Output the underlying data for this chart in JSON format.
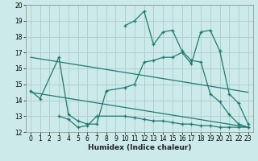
{
  "xlabel": "Humidex (Indice chaleur)",
  "bg_color": "#cdeaea",
  "line_color": "#1e7a6e",
  "grid_color": "#b0d0d0",
  "xlim": [
    -0.5,
    23.5
  ],
  "ylim": [
    12,
    20
  ],
  "xticks": [
    0,
    1,
    2,
    3,
    4,
    5,
    6,
    7,
    8,
    9,
    10,
    11,
    12,
    13,
    14,
    15,
    16,
    17,
    18,
    19,
    20,
    21,
    22,
    23
  ],
  "yticks": [
    12,
    13,
    14,
    15,
    16,
    17,
    18,
    19,
    20
  ],
  "curve1_x": [
    0,
    1,
    3,
    4,
    5,
    6,
    7,
    8,
    10,
    11,
    12,
    13,
    14,
    15,
    16,
    17,
    18,
    19,
    20,
    21,
    22,
    23
  ],
  "curve1_y": [
    14.6,
    14.1,
    16.7,
    13.1,
    12.7,
    12.5,
    12.5,
    14.6,
    14.8,
    15.0,
    16.4,
    16.5,
    16.7,
    16.7,
    17.0,
    16.3,
    18.3,
    18.4,
    17.1,
    14.4,
    13.8,
    12.5
  ],
  "curve2_x": [
    10,
    11,
    12,
    13,
    14,
    15,
    16,
    17,
    18,
    19,
    20,
    21,
    22,
    23
  ],
  "curve2_y": [
    18.7,
    19.0,
    19.6,
    17.5,
    18.3,
    18.4,
    17.1,
    16.5,
    16.4,
    14.4,
    13.9,
    13.1,
    12.5,
    12.3
  ],
  "trend1_x": [
    0,
    23
  ],
  "trend1_y": [
    16.7,
    14.5
  ],
  "trend2_x": [
    0,
    23
  ],
  "trend2_y": [
    14.5,
    12.3
  ],
  "curve3_x": [
    3,
    4,
    5,
    6,
    7,
    10,
    11,
    12,
    13,
    14,
    15,
    16,
    17,
    18,
    19,
    20,
    21,
    22,
    23
  ],
  "curve3_y": [
    13.0,
    12.8,
    12.3,
    12.4,
    13.0,
    13.0,
    12.9,
    12.8,
    12.7,
    12.7,
    12.6,
    12.5,
    12.5,
    12.4,
    12.4,
    12.3,
    12.3,
    12.3,
    12.3
  ]
}
